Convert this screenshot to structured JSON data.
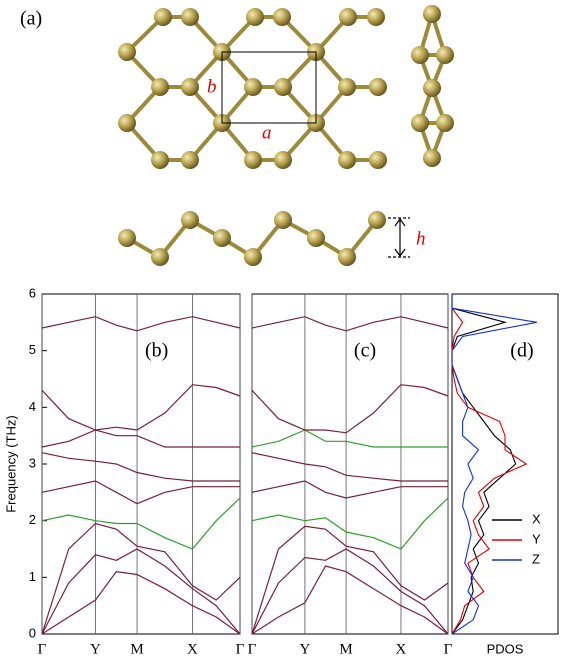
{
  "structure": {
    "label": "(a)",
    "a": "a",
    "b": "b",
    "h": "h"
  },
  "chart_data": [
    {
      "type": "line",
      "label": "(b)",
      "ylabel": "Frequency (THz)",
      "x": [
        0,
        0.135,
        0.27,
        0.375,
        0.48,
        0.62,
        0.76,
        0.88,
        1
      ],
      "xlim": [
        0,
        1
      ],
      "xticks": [
        {
          "value": 0,
          "label": "Γ"
        },
        {
          "value": 0.27,
          "label": "Y"
        },
        {
          "value": 0.48,
          "label": "M"
        },
        {
          "value": 0.76,
          "label": "X"
        },
        {
          "value": 1,
          "label": "Γ"
        }
      ],
      "ylim": [
        0,
        6
      ],
      "yticks": [
        0,
        1,
        2,
        3,
        4,
        5,
        6
      ],
      "grid": true,
      "series": [
        {
          "color": "#7a1f3a",
          "values": [
            0,
            0.3,
            0.6,
            1.1,
            1.05,
            0.8,
            0.5,
            0.3,
            0
          ]
        },
        {
          "color": "#7a1f3a",
          "values": [
            0,
            0.9,
            1.4,
            1.3,
            1.5,
            1.2,
            0.8,
            0.5,
            0
          ]
        },
        {
          "color": "#7a1f3a",
          "values": [
            0,
            1.5,
            1.95,
            1.85,
            1.55,
            1.45,
            0.85,
            0.6,
            1.0
          ]
        },
        {
          "color": "#2ca02c",
          "values": [
            2.0,
            2.1,
            2.0,
            1.95,
            1.95,
            1.7,
            1.5,
            2.0,
            2.4
          ]
        },
        {
          "color": "#7a1f3a",
          "values": [
            2.5,
            2.6,
            2.7,
            2.5,
            2.3,
            2.5,
            2.6,
            2.6,
            2.6
          ]
        },
        {
          "color": "#7a1f3a",
          "values": [
            3.2,
            3.1,
            3.05,
            3.0,
            2.85,
            2.75,
            2.7,
            2.7,
            2.7
          ]
        },
        {
          "color": "#7a1f3a",
          "values": [
            3.3,
            3.4,
            3.6,
            3.5,
            3.5,
            3.3,
            3.3,
            3.3,
            3.3
          ]
        },
        {
          "color": "#7a1f3a",
          "values": [
            4.3,
            3.8,
            3.6,
            3.65,
            3.6,
            3.9,
            4.4,
            4.35,
            4.2
          ]
        },
        {
          "color": "#7a1f3a",
          "values": [
            5.4,
            5.5,
            5.6,
            5.45,
            5.35,
            5.5,
            5.6,
            5.5,
            5.4
          ]
        }
      ]
    },
    {
      "type": "line",
      "label": "(c)",
      "x": [
        0,
        0.135,
        0.27,
        0.375,
        0.48,
        0.62,
        0.76,
        0.88,
        1
      ],
      "xlim": [
        0,
        1
      ],
      "xticks": [
        {
          "value": 0,
          "label": "Γ"
        },
        {
          "value": 0.27,
          "label": "Y"
        },
        {
          "value": 0.48,
          "label": "M"
        },
        {
          "value": 0.76,
          "label": "X"
        },
        {
          "value": 1,
          "label": "Γ"
        }
      ],
      "ylim": [
        0,
        6
      ],
      "grid": true,
      "series": [
        {
          "color": "#7a1f3a",
          "values": [
            0,
            0.3,
            0.55,
            1.2,
            1.1,
            0.8,
            0.5,
            0.3,
            0
          ]
        },
        {
          "color": "#7a1f3a",
          "values": [
            0,
            0.9,
            1.35,
            1.3,
            1.5,
            1.2,
            0.75,
            0.5,
            0
          ]
        },
        {
          "color": "#7a1f3a",
          "values": [
            0,
            1.5,
            1.9,
            1.85,
            1.55,
            1.45,
            0.85,
            0.6,
            0.9
          ]
        },
        {
          "color": "#2ca02c",
          "values": [
            2.0,
            2.1,
            2.0,
            2.05,
            1.8,
            1.7,
            1.5,
            2.0,
            2.4
          ]
        },
        {
          "color": "#7a1f3a",
          "values": [
            2.5,
            2.6,
            2.7,
            2.5,
            2.4,
            2.5,
            2.6,
            2.6,
            2.6
          ]
        },
        {
          "color": "#7a1f3a",
          "values": [
            3.2,
            3.1,
            3.0,
            2.95,
            2.8,
            2.75,
            2.7,
            2.7,
            2.7
          ]
        },
        {
          "color": "#2ca02c",
          "values": [
            3.3,
            3.4,
            3.6,
            3.4,
            3.4,
            3.3,
            3.3,
            3.3,
            3.3
          ]
        },
        {
          "color": "#7a1f3a",
          "values": [
            4.3,
            3.8,
            3.6,
            3.6,
            3.55,
            3.9,
            4.4,
            4.35,
            4.2
          ]
        },
        {
          "color": "#7a1f3a",
          "values": [
            5.4,
            5.5,
            5.6,
            5.45,
            5.35,
            5.5,
            5.6,
            5.5,
            5.4
          ]
        }
      ]
    },
    {
      "type": "pdos",
      "label": "(d)",
      "xlabel": "PDOS",
      "y": [
        0,
        0.25,
        0.5,
        0.75,
        1,
        1.25,
        1.5,
        1.75,
        2,
        2.25,
        2.5,
        2.75,
        3,
        3.25,
        3.5,
        3.75,
        4,
        4.25,
        4.5,
        4.75,
        5,
        5.25,
        5.5,
        5.75,
        6
      ],
      "xlim": [
        0,
        1
      ],
      "ylim": [
        0,
        6
      ],
      "legend": "right",
      "series": [
        {
          "name": "X",
          "color": "#000000",
          "values": [
            0,
            0.1,
            0.15,
            0.2,
            0.18,
            0.25,
            0.2,
            0.3,
            0.25,
            0.35,
            0.3,
            0.45,
            0.6,
            0.55,
            0.4,
            0.3,
            0.2,
            0.1,
            0.05,
            0,
            0,
            0.05,
            0.5,
            0,
            0
          ]
        },
        {
          "name": "Y",
          "color": "#e00000",
          "values": [
            0,
            0.08,
            0.12,
            0.3,
            0.2,
            0.15,
            0.35,
            0.25,
            0.2,
            0.3,
            0.25,
            0.4,
            0.7,
            0.5,
            0.5,
            0.45,
            0.15,
            0.05,
            0.02,
            0,
            0,
            0.02,
            0.1,
            0,
            0
          ]
        },
        {
          "name": "Z",
          "color": "#1030e0",
          "values": [
            0,
            0.2,
            0.25,
            0.15,
            0.2,
            0.12,
            0.15,
            0.18,
            0.15,
            0.1,
            0.12,
            0.2,
            0.15,
            0.25,
            0.1,
            0.1,
            0.15,
            0.1,
            0.05,
            0,
            0,
            0.1,
            0.8,
            0,
            0
          ]
        }
      ]
    }
  ]
}
